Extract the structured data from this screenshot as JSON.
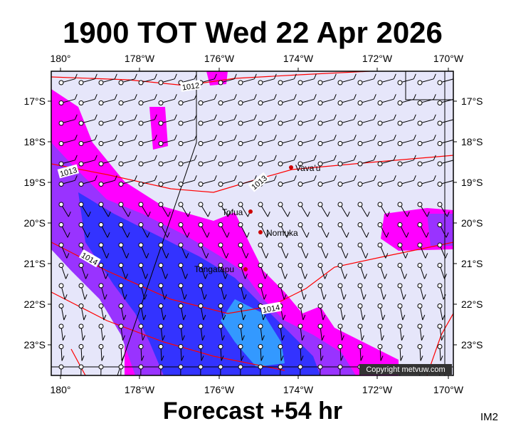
{
  "title": "1900 TOT Wed 22 Apr 2026",
  "footer": "Forecast +54 hr",
  "corner_code": "IM2",
  "copyright": "Copyright metvuw.com",
  "lon_labels": [
    "180°",
    "178°W",
    "176°W",
    "174°W",
    "172°W",
    "170°W"
  ],
  "lat_labels": [
    "17°S",
    "18°S",
    "19°S",
    "20°S",
    "21°S",
    "22°S",
    "23°S"
  ],
  "places": [
    "Vava'u",
    "Tofua",
    "Nomuka",
    "Tongatapu"
  ],
  "isobar_labels": [
    "1012",
    "1013",
    "1013",
    "1014",
    "1014"
  ]
}
